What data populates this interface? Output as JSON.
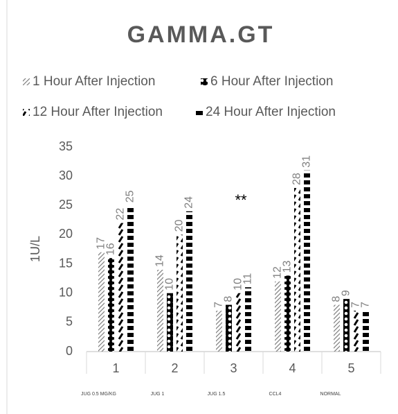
{
  "chart_data": {
    "type": "bar",
    "title": "GAMMA.GT",
    "categories": [
      "1",
      "2",
      "3",
      "4",
      "5"
    ],
    "category_sublabels": [
      "JUG 0.5 MG/KG",
      "JUG 1",
      "JUG 1.5",
      "CCL4",
      "NORMAL"
    ],
    "series": [
      {
        "name": "1 Hour After Injection",
        "color": "#7f7f7f",
        "values": [
          17,
          14,
          7,
          12,
          8
        ]
      },
      {
        "name": "6 Hour After Injection",
        "color": "#000000",
        "values": [
          16,
          10,
          8,
          13,
          9
        ]
      },
      {
        "name": "12 Hour After Injection",
        "color": "#000000",
        "values": [
          22,
          20,
          10,
          28,
          7
        ]
      },
      {
        "name": "24 Hour After Injection",
        "color": "#000000",
        "values": [
          25,
          24,
          11,
          31,
          7
        ]
      }
    ],
    "y_label": "1U/L",
    "annotation": "**",
    "ylim": [
      0,
      35
    ],
    "yticks": [
      0,
      5,
      10,
      15,
      20,
      25,
      30,
      35
    ],
    "grid": false
  }
}
